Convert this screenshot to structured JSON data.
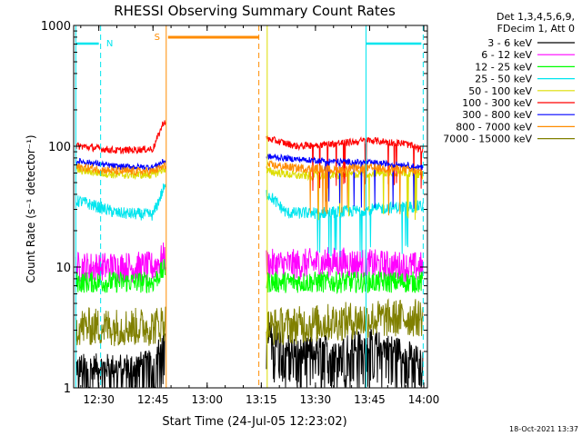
{
  "chart_data": {
    "type": "line",
    "title": "RHESSI Observing Summary Count Rates",
    "xlabel": "Start Time (24-Jul-05 12:23:02)",
    "ylabel": "Count Rate (s⁻¹ detector⁻¹)",
    "y_scale": "log",
    "ylim": [
      1,
      1000
    ],
    "xlim": [
      "12:23:02",
      "14:01:00"
    ],
    "x_ticks": [
      "12:30",
      "12:45",
      "13:00",
      "13:15",
      "13:30",
      "13:45",
      "14:00"
    ],
    "y_ticks": [
      "1",
      "10",
      "100",
      "1000"
    ],
    "legend_header": [
      "Det 1,3,4,5,6,9,",
      "FDecim 1, Att 0"
    ],
    "legend_position": "right",
    "data_gap": [
      "12:48:40",
      "13:16:20"
    ],
    "markers": [
      {
        "label": "N",
        "color": "#00e5ee",
        "time": "12:30:30"
      },
      {
        "label": "S",
        "color": "#ff8c00",
        "time": "12:48:40"
      }
    ],
    "series": [
      {
        "name": "3 - 6 keV",
        "color": "#000000",
        "x": [
          "12:25",
          "12:35",
          "12:45",
          "12:48",
          "13:17",
          "13:25",
          "13:35",
          "13:45",
          "13:55",
          "14:00"
        ],
        "y": [
          1.5,
          1.5,
          1.6,
          2.8,
          2.8,
          2.0,
          2.2,
          2.4,
          2.0,
          1.6
        ]
      },
      {
        "name": "6 - 12 keV",
        "color": "#ff00ff",
        "x": [
          "12:25",
          "12:35",
          "12:45",
          "12:48",
          "13:17",
          "13:25",
          "13:35",
          "13:45",
          "13:55",
          "14:00"
        ],
        "y": [
          10,
          10,
          10,
          12,
          10.5,
          10.5,
          11,
          10.5,
          10,
          10
        ]
      },
      {
        "name": "12 - 25 keV",
        "color": "#00ff00",
        "x": [
          "12:25",
          "12:35",
          "12:45",
          "12:48",
          "13:17",
          "13:25",
          "13:35",
          "13:45",
          "13:55",
          "14:00"
        ],
        "y": [
          7.5,
          7.5,
          7.5,
          9.5,
          7.5,
          7.5,
          7.5,
          7.5,
          7.5,
          7.5
        ]
      },
      {
        "name": "25 - 50 keV",
        "color": "#00e5ee",
        "x": [
          "12:25",
          "12:35",
          "12:45",
          "12:48",
          "13:17",
          "13:22",
          "13:30",
          "13:40",
          "13:50",
          "14:00"
        ],
        "y": [
          35,
          28,
          27,
          45,
          40,
          28,
          28,
          29,
          31,
          32
        ]
      },
      {
        "name": "50 - 100 keV",
        "color": "#dddd00",
        "x": [
          "12:25",
          "12:35",
          "12:45",
          "12:48",
          "13:17",
          "13:25",
          "13:35",
          "13:45",
          "13:55",
          "14:00"
        ],
        "y": [
          63,
          58,
          58,
          65,
          62,
          57,
          57,
          60,
          61,
          58
        ]
      },
      {
        "name": "100 - 300 keV",
        "color": "#ff0000",
        "x": [
          "12:25",
          "12:35",
          "12:45",
          "12:48",
          "13:17",
          "13:25",
          "13:35",
          "13:45",
          "13:55",
          "14:00"
        ],
        "y": [
          100,
          92,
          95,
          160,
          115,
          100,
          105,
          112,
          105,
          92
        ]
      },
      {
        "name": "300 - 800 keV",
        "color": "#0000ff",
        "x": [
          "12:25",
          "12:35",
          "12:45",
          "12:48",
          "13:17",
          "13:25",
          "13:35",
          "13:45",
          "13:55",
          "14:00"
        ],
        "y": [
          75,
          68,
          67,
          75,
          82,
          78,
          75,
          73,
          70,
          66
        ]
      },
      {
        "name": "800 - 7000 keV",
        "color": "#ff8c00",
        "x": [
          "12:25",
          "12:35",
          "12:45",
          "12:48",
          "13:17",
          "13:25",
          "13:35",
          "13:45",
          "13:55",
          "14:00"
        ],
        "y": [
          67,
          62,
          62,
          68,
          70,
          66,
          64,
          66,
          64,
          60
        ]
      },
      {
        "name": "7000 - 15000 keV",
        "color": "#808000",
        "x": [
          "12:25",
          "12:35",
          "12:45",
          "12:48",
          "13:17",
          "13:25",
          "13:35",
          "13:45",
          "13:55",
          "14:00"
        ],
        "y": [
          3.2,
          3.2,
          3.2,
          3.5,
          3.2,
          3.3,
          3.5,
          3.7,
          3.8,
          3.8
        ]
      }
    ]
  },
  "footer_timestamp": "18-Oct-2021 13:37"
}
